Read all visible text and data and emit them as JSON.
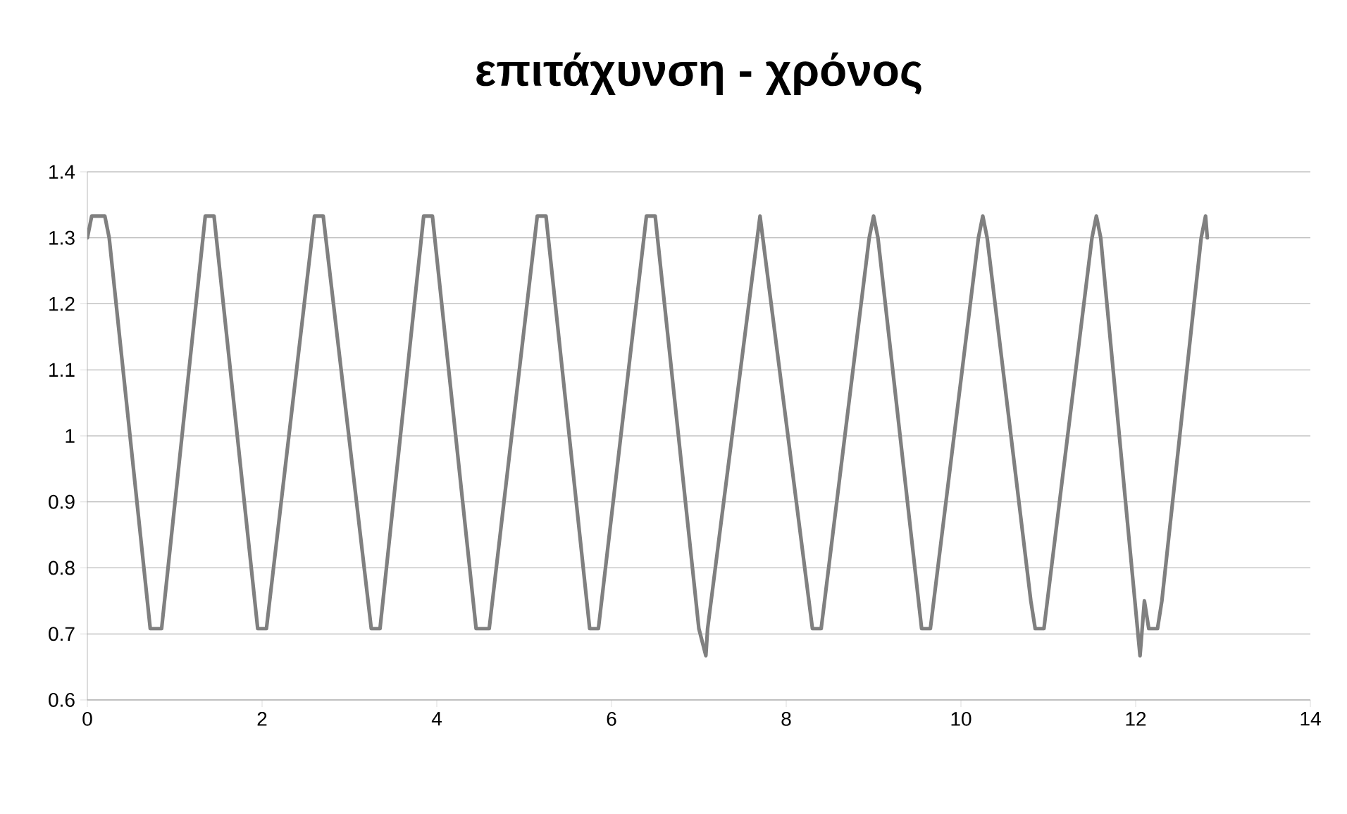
{
  "chart_data": {
    "type": "line",
    "title": "επιτάχυνση - χρόνος",
    "xlim": [
      0,
      14
    ],
    "xticks": [
      0,
      2,
      4,
      6,
      8,
      10,
      12,
      14
    ],
    "ylim": [
      0.6,
      1.4
    ],
    "yticks": [
      0.6,
      0.7,
      0.8,
      0.9,
      1,
      1.1,
      1.2,
      1.3,
      1.4
    ],
    "grid": "y",
    "legend": false,
    "marker": "none",
    "line_style": "solid",
    "series": [
      {
        "color": "#808080",
        "x": [
          0.0,
          0.05,
          0.2,
          0.25,
          0.72,
          0.85,
          1.35,
          1.45,
          1.95,
          2.05,
          2.6,
          2.7,
          3.25,
          3.35,
          3.85,
          3.95,
          4.45,
          4.6,
          5.15,
          5.25,
          5.75,
          5.85,
          6.4,
          6.5,
          7.0,
          7.08,
          7.1,
          7.7,
          8.3,
          8.4,
          8.95,
          9.0,
          9.05,
          9.55,
          9.65,
          10.2,
          10.25,
          10.3,
          10.8,
          10.85,
          10.95,
          11.5,
          11.55,
          11.6,
          12.05,
          12.1,
          12.15,
          12.25,
          12.3,
          12.75,
          12.8,
          12.82
        ],
        "values": [
          1.3,
          1.333,
          1.333,
          1.3,
          0.708,
          0.708,
          1.333,
          1.333,
          0.708,
          0.708,
          1.333,
          1.333,
          0.708,
          0.708,
          1.333,
          1.333,
          0.708,
          0.708,
          1.333,
          1.333,
          0.708,
          0.708,
          1.333,
          1.333,
          0.708,
          0.667,
          0.708,
          1.333,
          0.708,
          0.708,
          1.3,
          1.333,
          1.3,
          0.708,
          0.708,
          1.3,
          1.333,
          1.3,
          0.75,
          0.708,
          0.708,
          1.3,
          1.333,
          1.3,
          0.667,
          0.75,
          0.708,
          0.708,
          0.75,
          1.3,
          1.333,
          1.3
        ]
      }
    ]
  }
}
